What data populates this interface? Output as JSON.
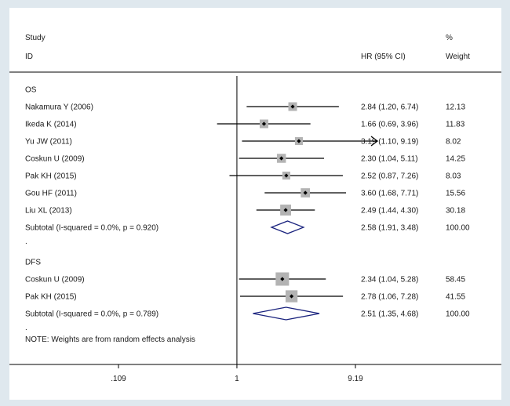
{
  "chart_data": {
    "type": "forest",
    "header": {
      "study_line1": "Study",
      "study_line2": "ID",
      "hr_label": "HR (95% CI)",
      "weight_line1": "%",
      "weight_line2": "Weight"
    },
    "groups": [
      {
        "name": "OS",
        "studies": [
          {
            "label": "Nakamura Y (2006)",
            "hr": 2.84,
            "lo": 1.2,
            "hi": 6.74,
            "ci_text": "2.84 (1.20, 6.74)",
            "weight": 12.13,
            "weight_text": "12.13"
          },
          {
            "label": "Ikeda K (2014)",
            "hr": 1.66,
            "lo": 0.69,
            "hi": 3.96,
            "ci_text": "1.66 (0.69, 3.96)",
            "weight": 11.83,
            "weight_text": "11.83"
          },
          {
            "label": "Yu JW (2011)",
            "hr": 3.19,
            "lo": 1.1,
            "hi": 9.19,
            "ci_text": "3.19 (1.10, 9.19)",
            "weight": 8.02,
            "weight_text": "8.02",
            "arrow": true
          },
          {
            "label": "Coskun U (2009)",
            "hr": 2.3,
            "lo": 1.04,
            "hi": 5.11,
            "ci_text": "2.30 (1.04, 5.11)",
            "weight": 14.25,
            "weight_text": "14.25"
          },
          {
            "label": "Pak KH (2015)",
            "hr": 2.52,
            "lo": 0.87,
            "hi": 7.26,
            "ci_text": "2.52 (0.87, 7.26)",
            "weight": 8.03,
            "weight_text": "8.03"
          },
          {
            "label": "Gou HF (2011)",
            "hr": 3.6,
            "lo": 1.68,
            "hi": 7.71,
            "ci_text": "3.60 (1.68, 7.71)",
            "weight": 15.56,
            "weight_text": "15.56"
          },
          {
            "label": "Liu XL (2013)",
            "hr": 2.49,
            "lo": 1.44,
            "hi": 4.3,
            "ci_text": "2.49 (1.44, 4.30)",
            "weight": 30.18,
            "weight_text": "30.18"
          }
        ],
        "subtotal": {
          "label": "Subtotal  (I-squared = 0.0%, p = 0.920)",
          "hr": 2.58,
          "lo": 1.91,
          "hi": 3.48,
          "ci_text": "2.58 (1.91, 3.48)",
          "weight_text": "100.00"
        }
      },
      {
        "name": "DFS",
        "studies": [
          {
            "label": "Coskun U (2009)",
            "hr": 2.34,
            "lo": 1.04,
            "hi": 5.28,
            "ci_text": "2.34 (1.04, 5.28)",
            "weight": 58.45,
            "weight_text": "58.45"
          },
          {
            "label": "Pak KH (2015)",
            "hr": 2.78,
            "lo": 1.06,
            "hi": 7.28,
            "ci_text": "2.78 (1.06, 7.28)",
            "weight": 41.55,
            "weight_text": "41.55"
          }
        ],
        "subtotal": {
          "label": "Subtotal  (I-squared = 0.0%, p = 0.789)",
          "hr": 2.51,
          "lo": 1.35,
          "hi": 4.68,
          "ci_text": "2.51 (1.35, 4.68)",
          "weight_text": "100.00"
        }
      }
    ],
    "separator_dot": ".",
    "note_dot": ".",
    "note": "NOTE: Weights are from random effects analysis",
    "x_axis": {
      "scale": "log",
      "range": [
        0.109,
        9.19
      ],
      "ticks": [
        {
          "value": 0.109,
          "label": ".109"
        },
        {
          "value": 1,
          "label": "1"
        },
        {
          "value": 9.19,
          "label": "9.19"
        }
      ],
      "null_line": 1
    },
    "colors": {
      "box": "#b3b3b3",
      "line": "#000000",
      "diamond": "#1a237e",
      "text": "#1a1a1a"
    }
  }
}
